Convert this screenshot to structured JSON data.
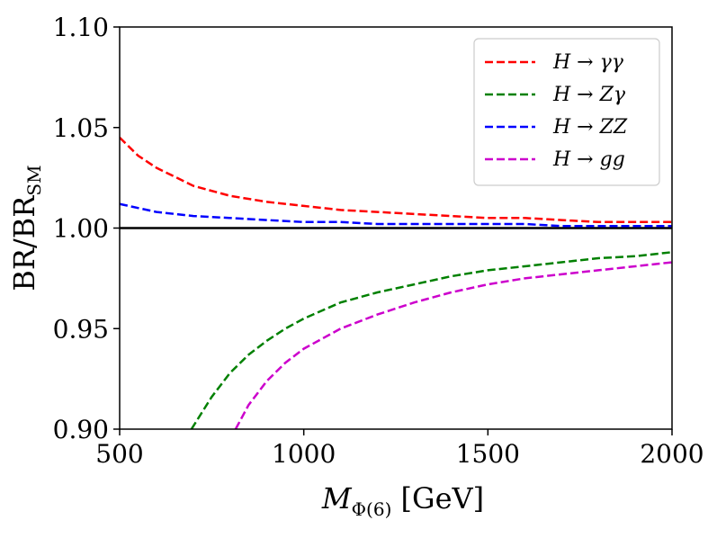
{
  "chart_data": {
    "type": "line",
    "title": "",
    "xlabel": "M_Φ(6) [GeV]",
    "ylabel": "BR/BR_SM",
    "xlim": [
      500,
      2000
    ],
    "ylim": [
      0.9,
      1.1
    ],
    "xticks": [
      "500",
      "1000",
      "1500",
      "2000"
    ],
    "yticks": [
      "0.90",
      "0.95",
      "1.00",
      "1.05",
      "1.10"
    ],
    "reference_line": 1.0,
    "legend_position": "top-right",
    "series": [
      {
        "name": "H → γγ",
        "color": "#ff0000",
        "x": [
          500,
          550,
          600,
          700,
          800,
          900,
          1000,
          1100,
          1200,
          1300,
          1400,
          1500,
          1600,
          1700,
          1800,
          1900,
          2000
        ],
        "y": [
          1.045,
          1.036,
          1.03,
          1.021,
          1.016,
          1.013,
          1.011,
          1.009,
          1.008,
          1.007,
          1.006,
          1.005,
          1.005,
          1.004,
          1.003,
          1.003,
          1.003
        ]
      },
      {
        "name": "H → Zγ",
        "color": "#008000",
        "x": [
          695,
          750,
          800,
          850,
          900,
          950,
          1000,
          1100,
          1200,
          1300,
          1400,
          1500,
          1600,
          1700,
          1800,
          1900,
          2000
        ],
        "y": [
          0.9,
          0.916,
          0.928,
          0.937,
          0.944,
          0.95,
          0.955,
          0.963,
          0.968,
          0.972,
          0.976,
          0.979,
          0.981,
          0.983,
          0.985,
          0.986,
          0.988
        ]
      },
      {
        "name": "H → ZZ",
        "color": "#0000ff",
        "x": [
          500,
          550,
          600,
          700,
          800,
          900,
          1000,
          1100,
          1200,
          1300,
          1400,
          1500,
          1600,
          1700,
          1800,
          1900,
          2000
        ],
        "y": [
          1.012,
          1.01,
          1.008,
          1.006,
          1.005,
          1.004,
          1.003,
          1.003,
          1.002,
          1.002,
          1.002,
          1.002,
          1.002,
          1.001,
          1.001,
          1.001,
          1.001
        ]
      },
      {
        "name": "H → gg",
        "color": "#cc00cc",
        "x": [
          815,
          850,
          900,
          950,
          1000,
          1100,
          1200,
          1300,
          1400,
          1500,
          1600,
          1700,
          1800,
          1900,
          2000
        ],
        "y": [
          0.9,
          0.912,
          0.924,
          0.933,
          0.94,
          0.95,
          0.957,
          0.963,
          0.968,
          0.972,
          0.975,
          0.977,
          0.979,
          0.981,
          0.983
        ]
      }
    ]
  }
}
